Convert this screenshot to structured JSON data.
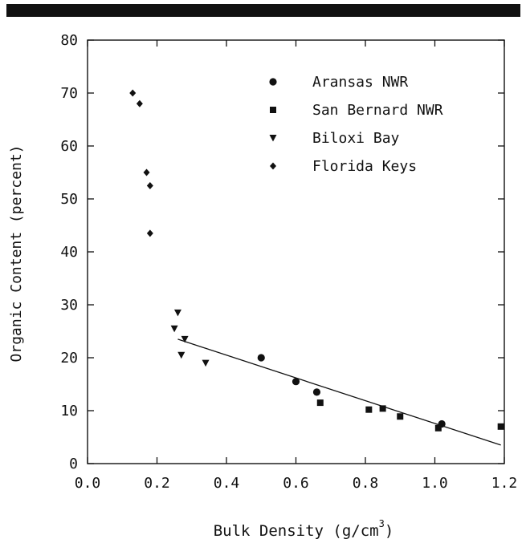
{
  "chart_data": {
    "type": "scatter",
    "title": "",
    "xlabel": "Bulk Density (g/cm",
    "xlabel_superscript": "3",
    "xlabel_close": ")",
    "ylabel": "Organic Content (percent)",
    "xlim": [
      0.0,
      1.2
    ],
    "ylim": [
      0,
      80
    ],
    "x_ticks": [
      0.0,
      0.2,
      0.4,
      0.6,
      0.8,
      1.0,
      1.2
    ],
    "x_tick_labels": [
      "0.0",
      "0.2",
      "0.4",
      "0.6",
      "0.8",
      "1.0",
      "1.2"
    ],
    "y_ticks": [
      0,
      10,
      20,
      30,
      40,
      50,
      60,
      70,
      80
    ],
    "y_tick_labels": [
      "0",
      "10",
      "20",
      "30",
      "40",
      "50",
      "60",
      "70",
      "80"
    ],
    "grid": false,
    "legend_position": "top-right",
    "series": [
      {
        "name": "Aransas NWR",
        "marker": "circle",
        "points": [
          [
            0.5,
            20.0
          ],
          [
            0.6,
            15.5
          ],
          [
            0.66,
            13.5
          ],
          [
            1.02,
            7.5
          ]
        ]
      },
      {
        "name": "San Bernard NWR",
        "marker": "square",
        "points": [
          [
            0.67,
            11.5
          ],
          [
            0.81,
            10.2
          ],
          [
            0.85,
            10.4
          ],
          [
            0.9,
            8.9
          ],
          [
            1.01,
            6.7
          ],
          [
            1.19,
            7.0
          ]
        ]
      },
      {
        "name": "Biloxi Bay",
        "marker": "triangle-down",
        "points": [
          [
            0.26,
            28.5
          ],
          [
            0.25,
            25.5
          ],
          [
            0.28,
            23.5
          ],
          [
            0.27,
            20.5
          ],
          [
            0.34,
            19.0
          ]
        ]
      },
      {
        "name": "Florida Keys",
        "marker": "diamond",
        "points": [
          [
            0.13,
            70.0
          ],
          [
            0.15,
            68.0
          ],
          [
            0.17,
            55.0
          ],
          [
            0.18,
            52.5
          ],
          [
            0.18,
            43.5
          ]
        ]
      }
    ],
    "trend_line": {
      "x": [
        0.26,
        1.19
      ],
      "y": [
        23.5,
        3.5
      ]
    }
  }
}
